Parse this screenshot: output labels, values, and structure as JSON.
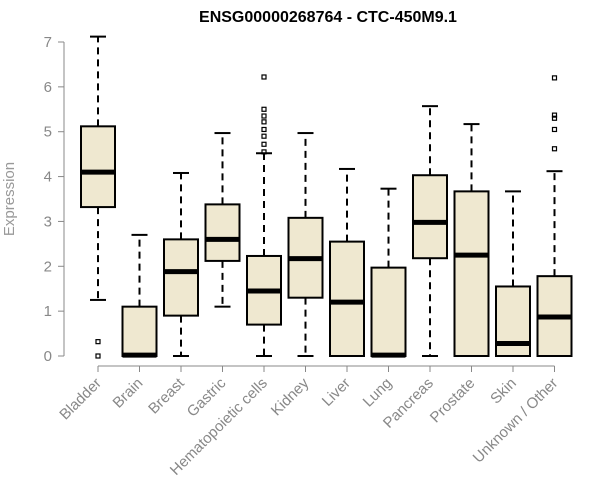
{
  "chart_data": {
    "type": "boxplot",
    "title": "ENSG00000268764 - CTC-450M9.1",
    "xlabel": "",
    "ylabel": "Expression",
    "ylim": [
      0,
      7.25
    ],
    "yticks": [
      0,
      1,
      2,
      3,
      4,
      5,
      6,
      7
    ],
    "grid": false,
    "colors": {
      "box_fill": "#efe8d0",
      "box_stroke": "#000000",
      "axis": "#888888"
    },
    "categories": [
      "Bladder",
      "Brain",
      "Breast",
      "Gastric",
      "Hematopoietic cells",
      "Kidney",
      "Liver",
      "Lung",
      "Pancreas",
      "Prostate",
      "Skin",
      "Unknown / Other"
    ],
    "boxes": [
      {
        "label": "Bladder",
        "whisker_low": 1.25,
        "q1": 3.32,
        "median": 4.1,
        "q3": 5.12,
        "whisker_high": 7.12,
        "outliers": [
          0.32,
          0.0
        ]
      },
      {
        "label": "Brain",
        "whisker_low": 0.0,
        "q1": 0.0,
        "median": 0.02,
        "q3": 1.1,
        "whisker_high": 2.7,
        "outliers": []
      },
      {
        "label": "Breast",
        "whisker_low": 0.0,
        "q1": 0.9,
        "median": 1.88,
        "q3": 2.6,
        "whisker_high": 4.08,
        "outliers": []
      },
      {
        "label": "Gastric",
        "whisker_low": 1.1,
        "q1": 2.12,
        "median": 2.6,
        "q3": 3.38,
        "whisker_high": 4.97,
        "outliers": []
      },
      {
        "label": "Hematopoietic cells",
        "whisker_low": 0.0,
        "q1": 0.7,
        "median": 1.45,
        "q3": 2.23,
        "whisker_high": 4.52,
        "outliers": [
          4.55,
          4.72,
          4.9,
          5.05,
          5.22,
          5.35,
          5.5,
          6.22
        ]
      },
      {
        "label": "Kidney",
        "whisker_low": 0.0,
        "q1": 1.3,
        "median": 2.17,
        "q3": 3.08,
        "whisker_high": 4.97,
        "outliers": []
      },
      {
        "label": "Liver",
        "whisker_low": 0.0,
        "q1": 0.0,
        "median": 1.2,
        "q3": 2.55,
        "whisker_high": 4.17,
        "outliers": []
      },
      {
        "label": "Lung",
        "whisker_low": 0.0,
        "q1": 0.0,
        "median": 0.02,
        "q3": 1.97,
        "whisker_high": 3.73,
        "outliers": []
      },
      {
        "label": "Pancreas",
        "whisker_low": 0.0,
        "q1": 2.18,
        "median": 2.98,
        "q3": 4.03,
        "whisker_high": 5.57,
        "outliers": []
      },
      {
        "label": "Prostate",
        "whisker_low": 0.0,
        "q1": 0.0,
        "median": 2.25,
        "q3": 3.67,
        "whisker_high": 5.17,
        "outliers": []
      },
      {
        "label": "Skin",
        "whisker_low": 0.0,
        "q1": 0.0,
        "median": 0.28,
        "q3": 1.55,
        "whisker_high": 3.67,
        "outliers": []
      },
      {
        "label": "Unknown / Other",
        "whisker_low": 0.0,
        "q1": 0.0,
        "median": 0.87,
        "q3": 1.78,
        "whisker_high": 4.12,
        "outliers": [
          4.62,
          5.05,
          5.3,
          5.37,
          6.2
        ]
      }
    ]
  }
}
